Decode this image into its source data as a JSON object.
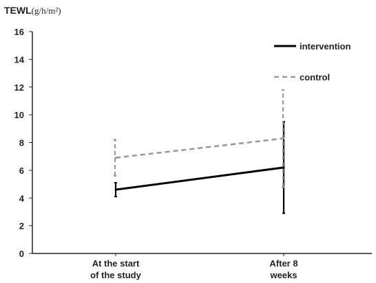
{
  "chart_data": {
    "type": "line",
    "categories": [
      "At the start|of the study",
      "After 8|weeks"
    ],
    "ylabel": "TEWL",
    "ylabel_unit": "(g/h/m²)",
    "ylim": [
      0,
      16
    ],
    "yticks": [
      0,
      2,
      4,
      6,
      8,
      10,
      12,
      14,
      16
    ],
    "grid": false,
    "legend_position": "top-right",
    "series": [
      {
        "name": "intervention",
        "color": "#000000",
        "style": "solid",
        "values": [
          4.6,
          6.2
        ],
        "error_low": [
          4.1,
          2.9
        ],
        "error_high": [
          5.1,
          9.5
        ]
      },
      {
        "name": "control",
        "color": "#999999",
        "style": "dashed",
        "values": [
          6.9,
          8.3
        ],
        "error_low": [
          5.6,
          4.8
        ],
        "error_high": [
          8.2,
          11.8
        ]
      }
    ]
  }
}
